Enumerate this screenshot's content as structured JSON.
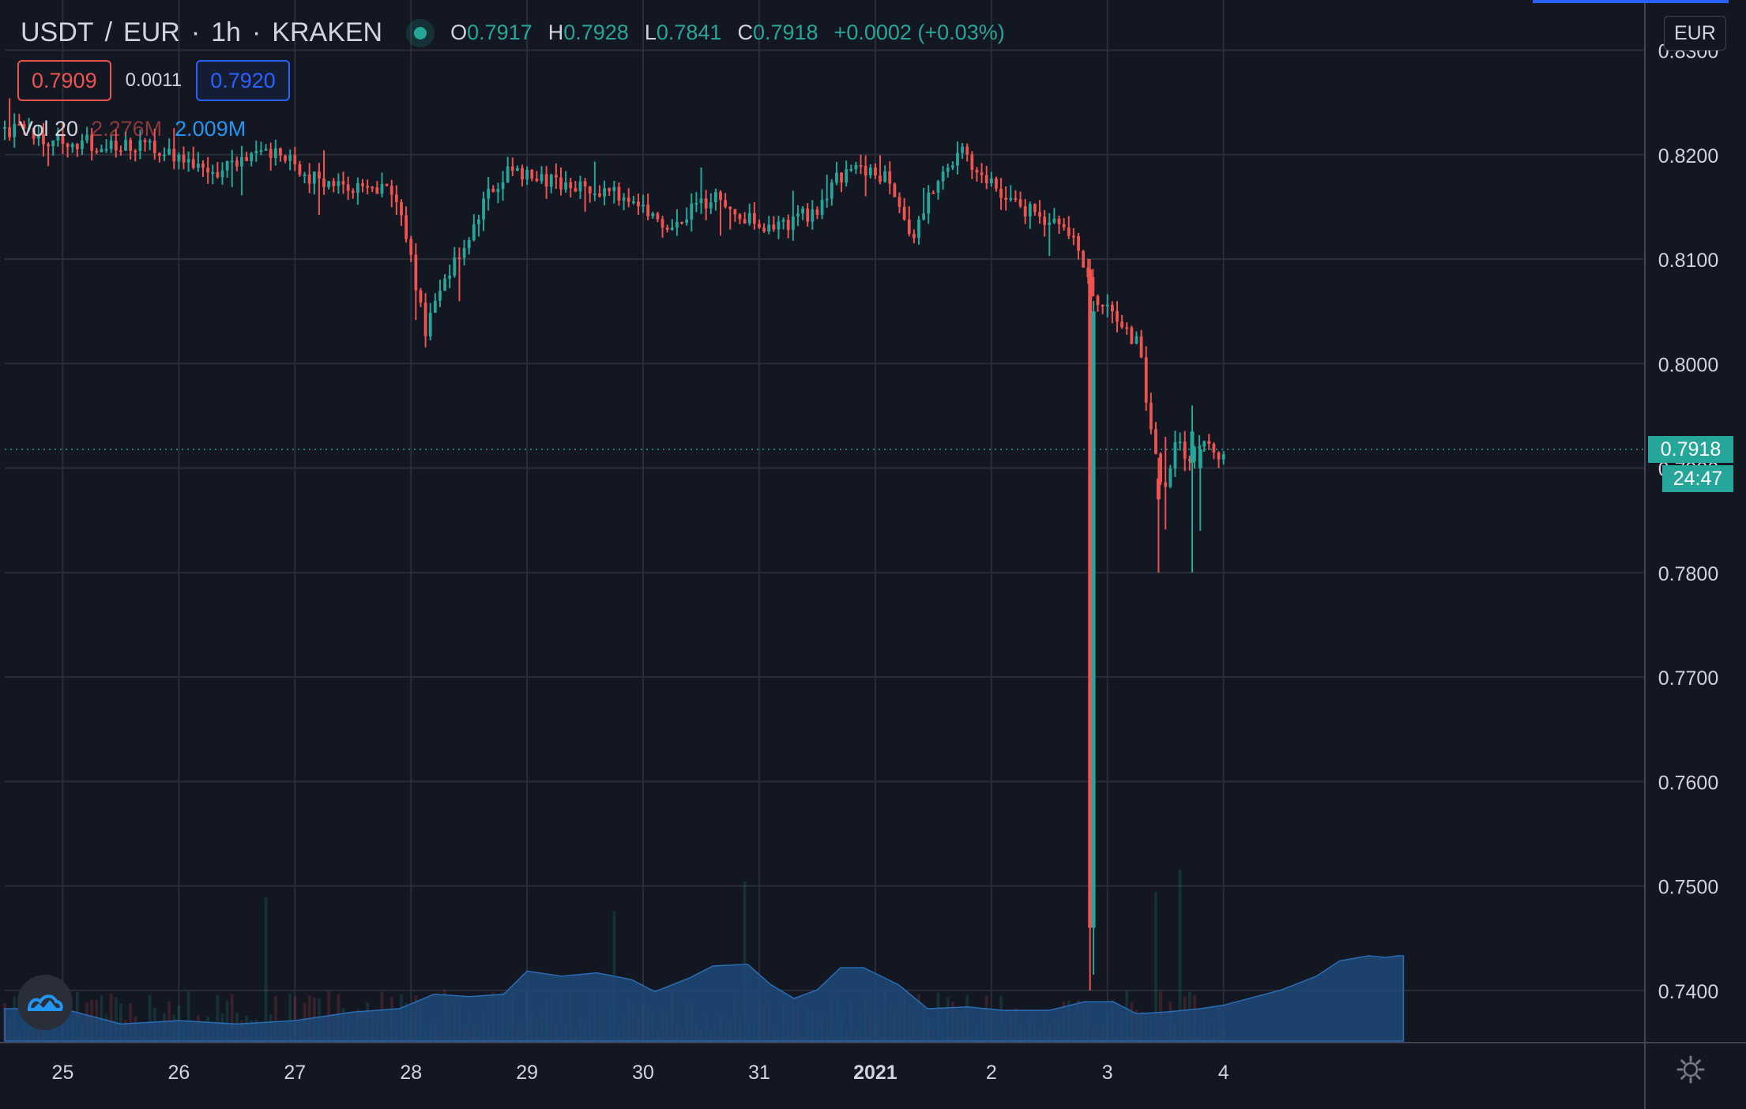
{
  "header": {
    "base": "USDT",
    "slash": "/",
    "quote": "EUR",
    "interval": "1h",
    "exchange": "KRAKEN",
    "ohlc": {
      "o_label": "O",
      "o": "0.7917",
      "h_label": "H",
      "h": "0.7928",
      "l_label": "L",
      "l": "0.7841",
      "c_label": "C",
      "c": "0.7918",
      "change": "+0.0002 (+0.03%)"
    }
  },
  "quote_bar": {
    "bid": "0.7909",
    "spread": "0.0011",
    "ask": "0.7920"
  },
  "volume_legend": {
    "label": "Vol 20",
    "value_a": "2.276M",
    "value_b": "2.009M"
  },
  "axis": {
    "currency": "EUR",
    "last_price": "0.7918",
    "countdown": "24:47"
  },
  "colors": {
    "up": "#26a69a",
    "down": "#ef5350",
    "volume_ma": "#1e4a7a",
    "accent": "#2962ff"
  },
  "icons": [
    "tradingview-logo-icon",
    "settings-gear-icon"
  ],
  "chart_data": {
    "type": "candlestick",
    "title": "USDT / EUR, 1h, KRAKEN",
    "ylim": [
      0.735,
      0.8345
    ],
    "y_ticks": [
      "0.8300",
      "0.8200",
      "0.8100",
      "0.8000",
      "0.7900",
      "0.7800",
      "0.7700",
      "0.7600",
      "0.7500",
      "0.7400"
    ],
    "y_tick_values": [
      0.83,
      0.82,
      0.81,
      0.8,
      0.79,
      0.78,
      0.77,
      0.76,
      0.75,
      0.74
    ],
    "x_ticks": [
      "25",
      "26",
      "27",
      "28",
      "29",
      "30",
      "31",
      "2021",
      "2",
      "3",
      "4"
    ],
    "x_tick_positions_day": [
      1,
      2,
      3,
      4,
      5,
      6,
      7,
      8,
      9,
      10,
      11
    ],
    "x_start_day": 0.5,
    "x_end_day": 12.55,
    "grid": true,
    "last_price_line": 0.7918,
    "price_path": [
      [
        0.5,
        0.8225
      ],
      [
        0.9,
        0.8215
      ],
      [
        1.3,
        0.821
      ],
      [
        1.7,
        0.8212
      ],
      [
        2.0,
        0.8198
      ],
      [
        2.3,
        0.8185
      ],
      [
        2.6,
        0.8195
      ],
      [
        2.9,
        0.82
      ],
      [
        3.1,
        0.818
      ],
      [
        3.35,
        0.817
      ],
      [
        3.6,
        0.8165
      ],
      [
        3.85,
        0.8168
      ],
      [
        3.95,
        0.813
      ],
      [
        4.05,
        0.807
      ],
      [
        4.12,
        0.803
      ],
      [
        4.2,
        0.806
      ],
      [
        4.3,
        0.8085
      ],
      [
        4.45,
        0.811
      ],
      [
        4.6,
        0.815
      ],
      [
        4.8,
        0.818
      ],
      [
        5.0,
        0.8185
      ],
      [
        5.2,
        0.8175
      ],
      [
        5.45,
        0.817
      ],
      [
        5.7,
        0.8165
      ],
      [
        5.9,
        0.8155
      ],
      [
        6.1,
        0.814
      ],
      [
        6.2,
        0.812
      ],
      [
        6.4,
        0.8145
      ],
      [
        6.65,
        0.816
      ],
      [
        6.9,
        0.814
      ],
      [
        7.05,
        0.813
      ],
      [
        7.3,
        0.8135
      ],
      [
        7.5,
        0.815
      ],
      [
        7.7,
        0.818
      ],
      [
        7.95,
        0.8185
      ],
      [
        8.1,
        0.8175
      ],
      [
        8.2,
        0.8145
      ],
      [
        8.32,
        0.812
      ],
      [
        8.45,
        0.816
      ],
      [
        8.6,
        0.819
      ],
      [
        8.75,
        0.8205
      ],
      [
        8.9,
        0.818
      ],
      [
        9.05,
        0.8165
      ],
      [
        9.25,
        0.815
      ],
      [
        9.45,
        0.814
      ],
      [
        9.6,
        0.8125
      ],
      [
        9.7,
        0.813
      ],
      [
        9.78,
        0.8095
      ],
      [
        9.85,
        0.807
      ],
      [
        9.95,
        0.805
      ],
      [
        10.05,
        0.805
      ],
      [
        10.15,
        0.803
      ],
      [
        10.28,
        0.8015
      ],
      [
        10.38,
        0.793
      ],
      [
        10.48,
        0.788
      ],
      [
        10.6,
        0.7925
      ],
      [
        10.72,
        0.791
      ],
      [
        10.82,
        0.7935
      ],
      [
        10.92,
        0.7912
      ],
      [
        11.0,
        0.7918
      ]
    ],
    "special_candles": [
      {
        "day": 9.85,
        "open": 0.809,
        "high": 0.81,
        "low": 0.74,
        "close": 0.746
      },
      {
        "day": 9.88,
        "open": 0.746,
        "high": 0.806,
        "low": 0.7415,
        "close": 0.805
      },
      {
        "day": 10.44,
        "open": 0.789,
        "high": 0.791,
        "low": 0.78,
        "close": 0.787
      },
      {
        "day": 10.73,
        "open": 0.7905,
        "high": 0.796,
        "low": 0.78,
        "close": 0.7935
      },
      {
        "day": 10.8,
        "open": 0.79,
        "high": 0.7922,
        "low": 0.784,
        "close": 0.7918
      }
    ],
    "volume_ma_path": [
      [
        0.5,
        0.38
      ],
      [
        1.0,
        0.38
      ],
      [
        1.5,
        0.2
      ],
      [
        2.0,
        0.24
      ],
      [
        2.5,
        0.2
      ],
      [
        3.0,
        0.24
      ],
      [
        3.5,
        0.34
      ],
      [
        3.9,
        0.38
      ],
      [
        4.2,
        0.55
      ],
      [
        4.5,
        0.52
      ],
      [
        4.8,
        0.55
      ],
      [
        5.0,
        0.82
      ],
      [
        5.3,
        0.76
      ],
      [
        5.6,
        0.8
      ],
      [
        5.9,
        0.72
      ],
      [
        6.1,
        0.58
      ],
      [
        6.4,
        0.74
      ],
      [
        6.6,
        0.88
      ],
      [
        6.9,
        0.9
      ],
      [
        7.1,
        0.66
      ],
      [
        7.3,
        0.5
      ],
      [
        7.5,
        0.6
      ],
      [
        7.7,
        0.86
      ],
      [
        7.9,
        0.86
      ],
      [
        8.2,
        0.66
      ],
      [
        8.45,
        0.38
      ],
      [
        8.8,
        0.4
      ],
      [
        9.1,
        0.36
      ],
      [
        9.5,
        0.36
      ],
      [
        9.8,
        0.46
      ],
      [
        10.05,
        0.46
      ],
      [
        10.25,
        0.32
      ],
      [
        10.5,
        0.34
      ],
      [
        10.8,
        0.38
      ],
      [
        11.0,
        0.42
      ],
      [
        11.5,
        0.6
      ],
      [
        11.8,
        0.76
      ],
      [
        12.0,
        0.94
      ],
      [
        12.25,
        1.0
      ],
      [
        12.4,
        0.98
      ],
      [
        12.5,
        1.0
      ],
      [
        12.55,
        1.0
      ]
    ]
  }
}
